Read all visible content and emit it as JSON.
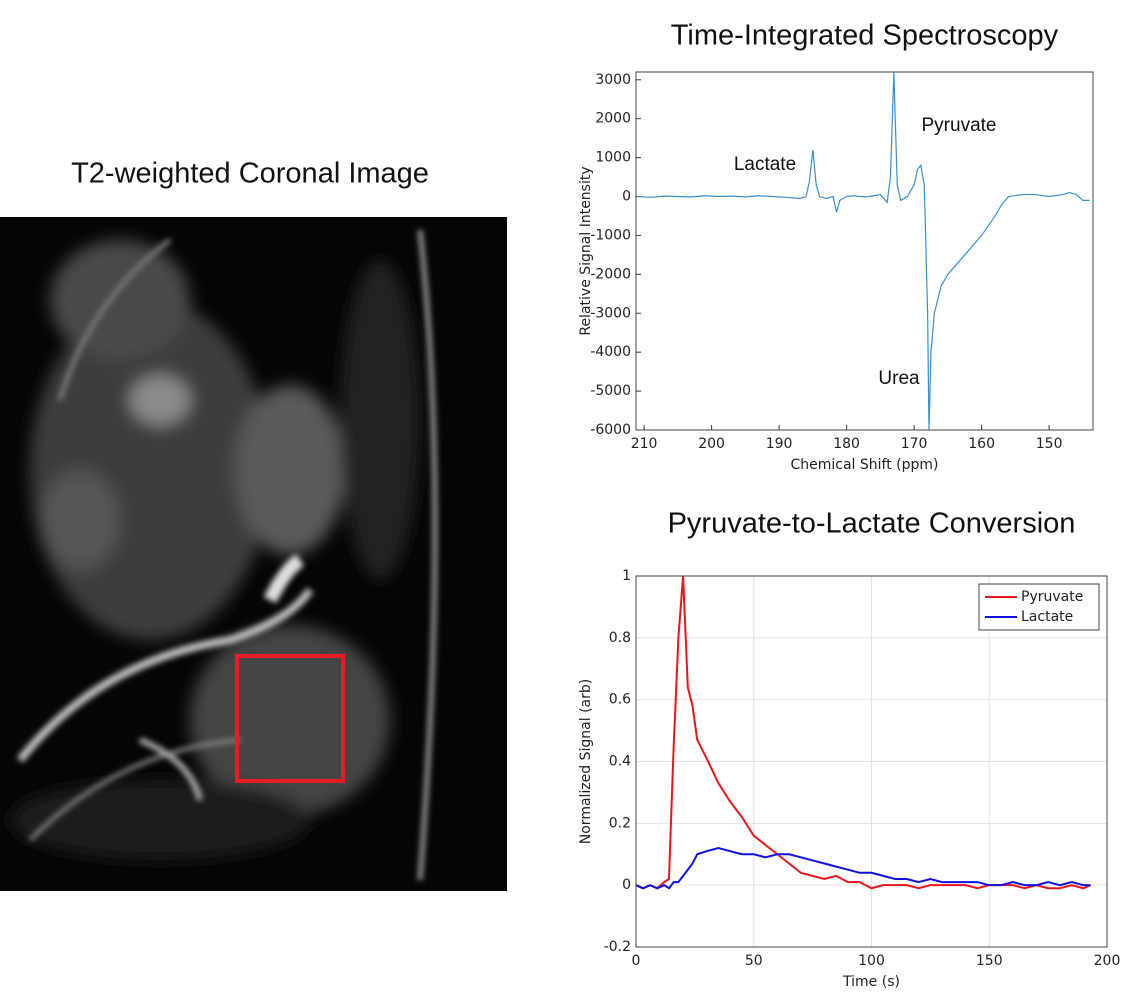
{
  "image": {
    "title": "T2-weighted Coronal Image"
  },
  "chart_data": [
    {
      "type": "line",
      "title": "Time-Integrated Spectroscopy",
      "xlabel": "Chemical Shift (ppm)",
      "ylabel": "Relative Signal Intensity",
      "annotations": [
        "Lactate",
        "Pyruvate",
        "Urea"
      ],
      "color": "#3a8fd0",
      "grid": false,
      "xlim": [
        211.2,
        143.5
      ],
      "xticks": [
        210,
        200,
        190,
        180,
        170,
        160,
        150
      ],
      "ylim": [
        -6000,
        3200
      ],
      "yticks": [
        -6000,
        -5000,
        -4000,
        -3000,
        -2000,
        -1000,
        0,
        1000,
        2000,
        3000
      ],
      "x": [
        211,
        209,
        207,
        205,
        203,
        201,
        199,
        197,
        195,
        193,
        191,
        189,
        187,
        186,
        185.5,
        185,
        184.5,
        184,
        183,
        182,
        181.5,
        181,
        180,
        179,
        178,
        177,
        176,
        175,
        174,
        173.5,
        173,
        172.5,
        172,
        171,
        170,
        169.5,
        169,
        168.5,
        168,
        167.8,
        167.5,
        167,
        166,
        165,
        164,
        162,
        160,
        158,
        157,
        156,
        154,
        152,
        150,
        148,
        147,
        146,
        145,
        144
      ],
      "values": [
        0,
        -20,
        10,
        0,
        -10,
        20,
        0,
        10,
        -10,
        20,
        0,
        -20,
        -50,
        0,
        400,
        1200,
        300,
        0,
        -50,
        0,
        -400,
        -100,
        0,
        20,
        0,
        -10,
        20,
        50,
        -150,
        500,
        3200,
        300,
        -100,
        0,
        300,
        700,
        800,
        300,
        -3000,
        -6000,
        -4000,
        -3000,
        -2300,
        -2000,
        -1800,
        -1400,
        -1000,
        -500,
        -200,
        0,
        50,
        50,
        0,
        50,
        100,
        50,
        -100,
        -100
      ]
    },
    {
      "type": "line",
      "title": "Pyruvate-to-Lactate Conversion",
      "xlabel": "Time (s)",
      "ylabel": "Normalized Signal (arb)",
      "grid": true,
      "legend": "upper right",
      "xlim": [
        0,
        200
      ],
      "xticks": [
        0,
        50,
        100,
        150,
        200
      ],
      "ylim": [
        -0.2,
        1
      ],
      "yticks": [
        -0.2,
        0,
        0.2,
        0.4,
        0.6,
        0.8,
        1
      ],
      "x": [
        0,
        3,
        6,
        9,
        12,
        14,
        16,
        18,
        20,
        22,
        24,
        26,
        30,
        35,
        40,
        45,
        50,
        55,
        60,
        65,
        70,
        75,
        80,
        85,
        90,
        95,
        100,
        105,
        110,
        115,
        120,
        125,
        130,
        135,
        140,
        145,
        150,
        155,
        160,
        165,
        170,
        175,
        180,
        185,
        190,
        193
      ],
      "series": [
        {
          "name": "Pyruvate",
          "color": "#e8161b",
          "values": [
            0,
            -0.01,
            0,
            -0.01,
            0.01,
            0.02,
            0.45,
            0.8,
            1.0,
            0.64,
            0.58,
            0.47,
            0.41,
            0.33,
            0.27,
            0.22,
            0.16,
            0.13,
            0.1,
            0.07,
            0.04,
            0.03,
            0.02,
            0.03,
            0.01,
            0.01,
            -0.01,
            0,
            0,
            0,
            -0.01,
            0,
            0,
            0,
            0,
            -0.01,
            0,
            0,
            0,
            -0.01,
            0,
            -0.01,
            -0.01,
            0,
            -0.01,
            0
          ]
        },
        {
          "name": "Lactate",
          "color": "#1010e0",
          "values": [
            0,
            -0.01,
            0,
            -0.01,
            0,
            -0.01,
            0.01,
            0.01,
            0.03,
            0.05,
            0.07,
            0.1,
            0.11,
            0.12,
            0.11,
            0.1,
            0.1,
            0.09,
            0.1,
            0.1,
            0.09,
            0.08,
            0.07,
            0.06,
            0.05,
            0.04,
            0.04,
            0.03,
            0.02,
            0.02,
            0.01,
            0.02,
            0.01,
            0.01,
            0.01,
            0.01,
            0,
            0,
            0.01,
            0,
            0,
            0.01,
            0,
            0.01,
            0,
            0
          ]
        }
      ]
    }
  ]
}
